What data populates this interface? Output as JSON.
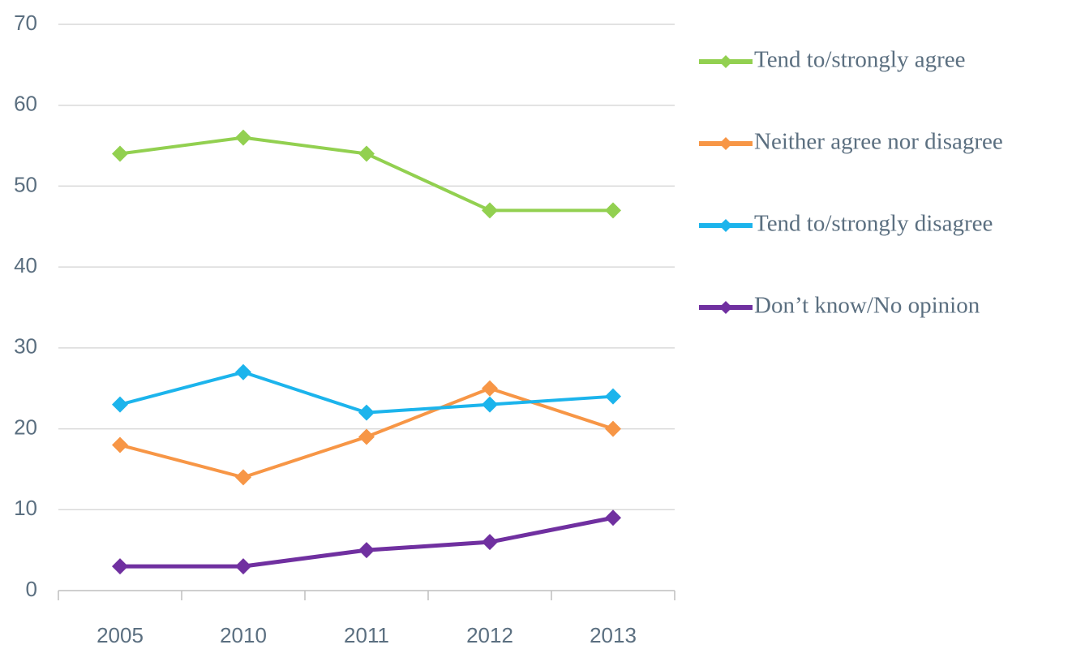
{
  "chart_data": {
    "type": "line",
    "categories": [
      "2005",
      "2010",
      "2011",
      "2012",
      "2013"
    ],
    "series": [
      {
        "name": "Tend to/strongly agree",
        "color": "#92d050",
        "values": [
          54,
          56,
          54,
          47,
          47
        ]
      },
      {
        "name": "Neither agree nor disagree",
        "color": "#f79646",
        "values": [
          18,
          14,
          19,
          25,
          20
        ]
      },
      {
        "name": "Tend to/strongly disagree",
        "color": "#1cb4ec",
        "values": [
          23,
          27,
          22,
          23,
          24
        ]
      },
      {
        "name": "Don’t know/No opinion",
        "color": "#7030a0",
        "values": [
          3,
          3,
          5,
          6,
          9
        ]
      }
    ],
    "ylim": [
      0,
      70
    ],
    "yticks": [
      0,
      10,
      20,
      30,
      40,
      50,
      60,
      70
    ],
    "grid": true,
    "legend": "right"
  }
}
